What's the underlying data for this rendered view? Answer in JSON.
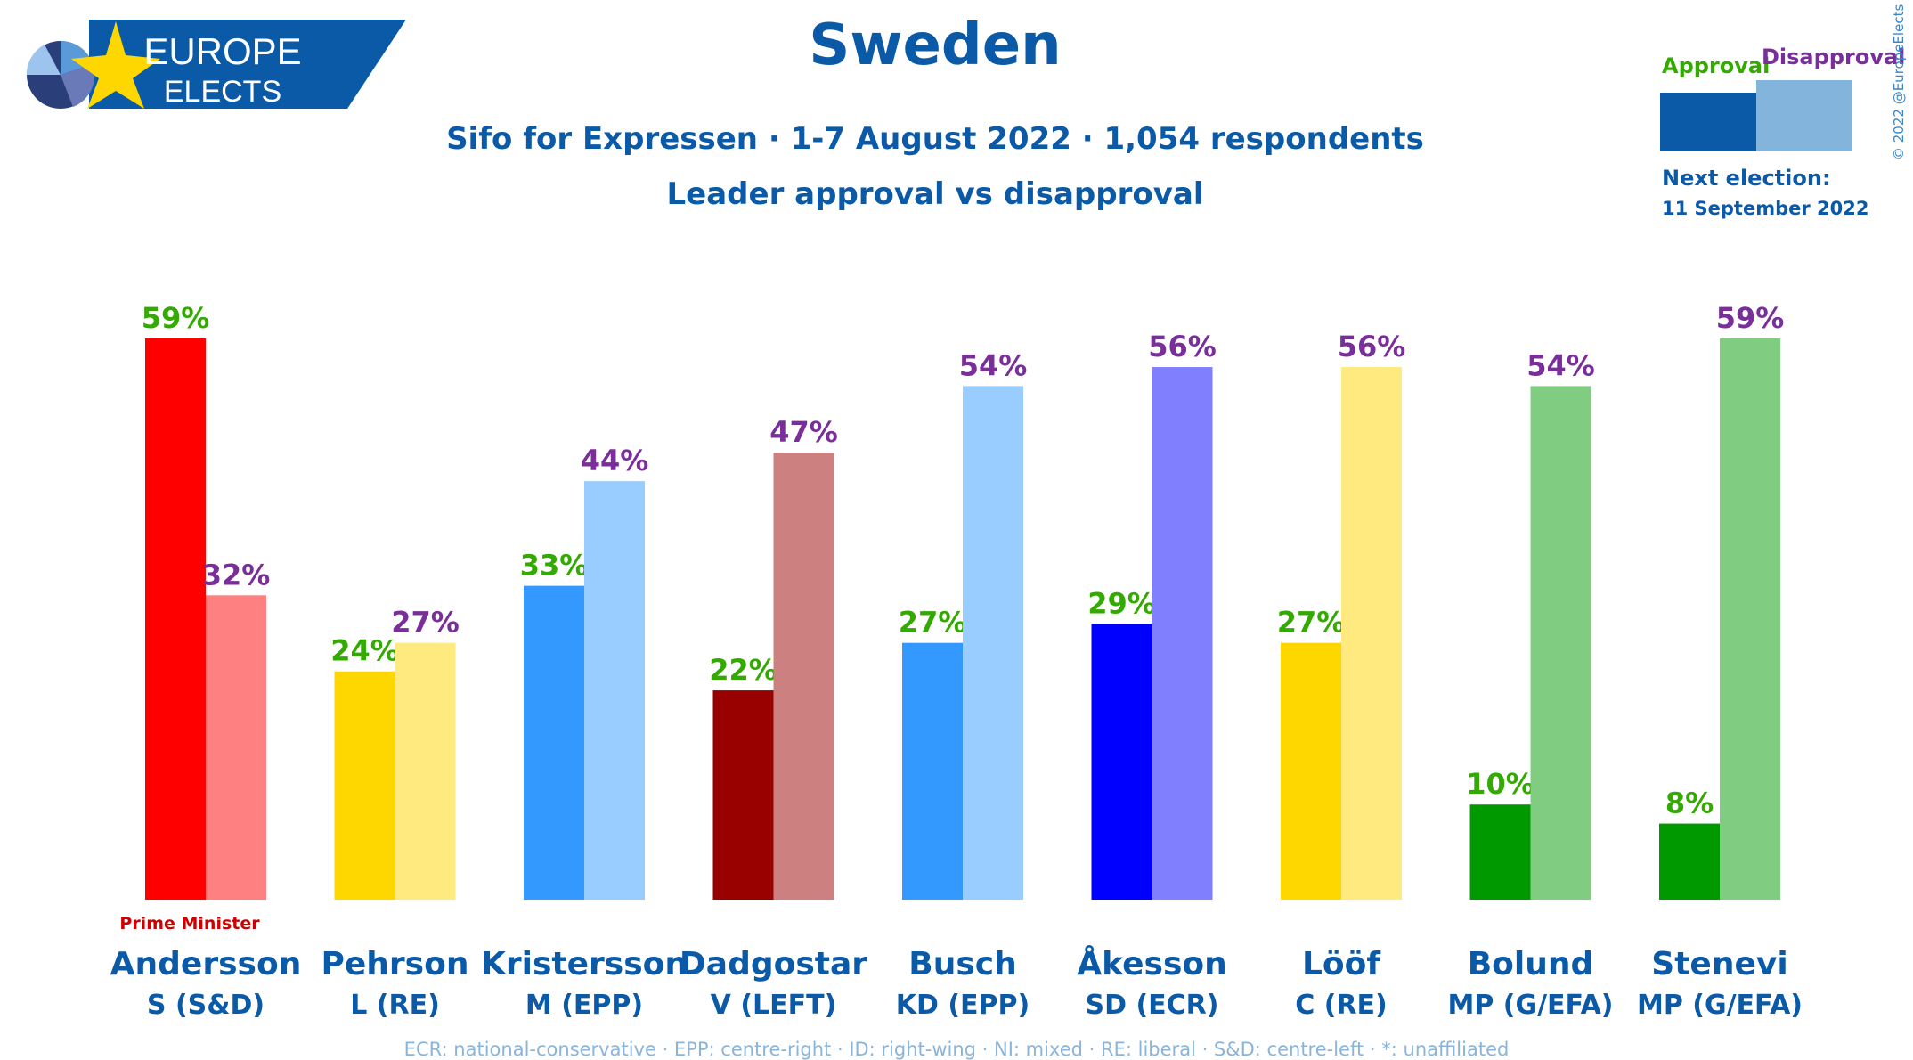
{
  "brand": {
    "line1": "EUROPE",
    "line2": "ELECTS"
  },
  "header": {
    "title": "Sweden",
    "subtitle": "Sifo for Expressen · 1-7 August 2022 · 1,054 respondents",
    "subtitle2": "Leader approval vs disapproval"
  },
  "legend": {
    "approval": "Approval",
    "disapproval": "Disapproval",
    "approval_text_color": "#33aa00",
    "disapproval_text_color": "#7a2e9a",
    "approval_swatch": "#0a5aa8",
    "disapproval_swatch": "#82b4dc"
  },
  "next_election": {
    "label": "Next election:",
    "date": "11 September 2022"
  },
  "copyright": "© 2022 @EuropeElects",
  "footnote": "ECR: national-conservative · EPP: centre-right · ID: right-wing · NI: mixed · RE: liberal · S&D: centre-left · *: unaffiliated",
  "chart_data": {
    "type": "bar",
    "title": "Leader approval vs disapproval",
    "ylim": [
      0,
      59
    ],
    "categories": [
      "Andersson",
      "Pehrson",
      "Kristersson",
      "Dadgostar",
      "Busch",
      "Åkesson",
      "Lööf",
      "Bolund",
      "Stenevi"
    ],
    "parties": [
      "S (S&D)",
      "L (RE)",
      "M (EPP)",
      "V (LEFT)",
      "KD (EPP)",
      "SD (ECR)",
      "C (RE)",
      "MP (G/EFA)",
      "MP (G/EFA)"
    ],
    "annotations": [
      "Prime Minister",
      "",
      "",
      "",
      "",
      "",
      "",
      "",
      ""
    ],
    "series": [
      {
        "name": "Approval",
        "values": [
          59,
          24,
          33,
          22,
          27,
          29,
          27,
          10,
          8
        ],
        "colors": [
          "#ff0000",
          "#ffd700",
          "#3399ff",
          "#990000",
          "#3399ff",
          "#0000ff",
          "#ffd700",
          "#009900",
          "#009900"
        ]
      },
      {
        "name": "Disapproval",
        "values": [
          32,
          27,
          44,
          47,
          54,
          56,
          56,
          54,
          59
        ],
        "colors": [
          "#ff8080",
          "#ffea80",
          "#99ccff",
          "#cc8080",
          "#99ccff",
          "#8080ff",
          "#ffea80",
          "#80cc80",
          "#80cc80"
        ]
      }
    ],
    "value_suffix": "%",
    "grid": false,
    "legend_position": "top-right"
  }
}
